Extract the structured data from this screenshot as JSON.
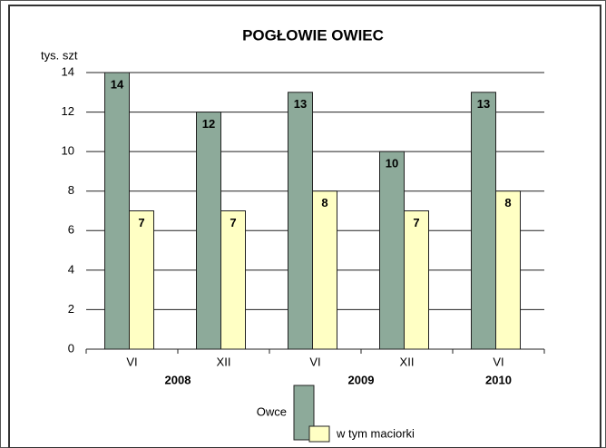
{
  "chart_data": {
    "type": "bar",
    "title": "POGŁOWIE  OWIEC",
    "y_label": "tys. szt",
    "categories": [
      "VI",
      "XII",
      "VI",
      "XII",
      "VI"
    ],
    "groups": [
      {
        "name": "2008",
        "span": 2
      },
      {
        "name": "2009",
        "span": 2
      },
      {
        "name": "2010",
        "span": 1
      }
    ],
    "series": [
      {
        "name": "Owce",
        "color": "#8daa9a",
        "values": [
          14,
          12,
          13,
          10,
          13
        ]
      },
      {
        "name": "w tym maciorki",
        "color": "#ffffc4",
        "values": [
          7,
          7,
          8,
          7,
          8
        ]
      }
    ],
    "ylim": [
      0,
      14
    ],
    "yticks": [
      0,
      2,
      4,
      6,
      8,
      10,
      12,
      14
    ],
    "grid": true
  }
}
